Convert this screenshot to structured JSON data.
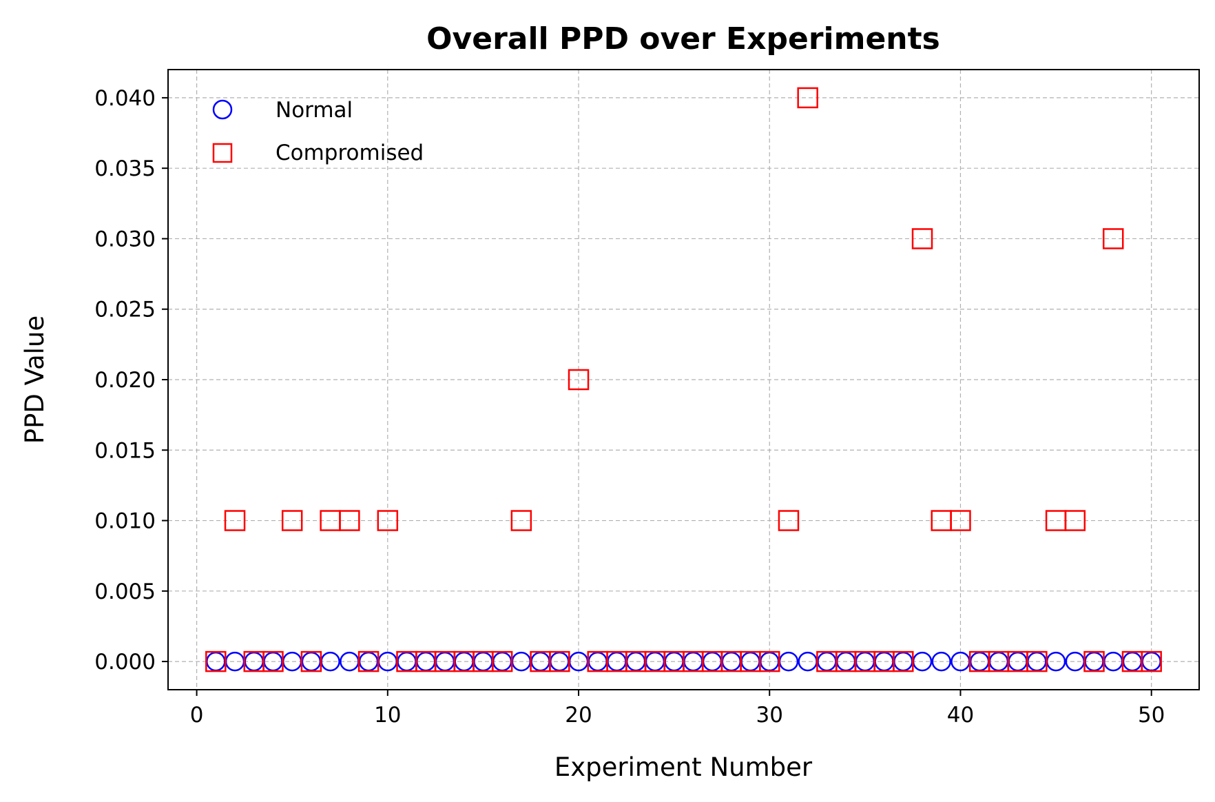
{
  "chart_data": {
    "type": "scatter",
    "title": "Overall PPD over Experiments",
    "xlabel": "Experiment Number",
    "ylabel": "PPD Value",
    "xlim": [
      -1.5,
      52.5
    ],
    "ylim": [
      -0.002,
      0.042
    ],
    "xticks": [
      0,
      10,
      20,
      30,
      40,
      50
    ],
    "xtick_labels": [
      "0",
      "10",
      "20",
      "30",
      "40",
      "50"
    ],
    "yticks": [
      0,
      0.005,
      0.01,
      0.015,
      0.02,
      0.025,
      0.03,
      0.035,
      0.04
    ],
    "ytick_labels": [
      "0.000",
      "0.005",
      "0.010",
      "0.015",
      "0.020",
      "0.025",
      "0.030",
      "0.035",
      "0.040"
    ],
    "grid": true,
    "legend_position": "top-left",
    "series": [
      {
        "name": "Normal",
        "marker": "circle",
        "color": "#0000ff",
        "x": [
          1,
          2,
          3,
          4,
          5,
          6,
          7,
          8,
          9,
          10,
          11,
          12,
          13,
          14,
          15,
          16,
          17,
          18,
          19,
          20,
          21,
          22,
          23,
          24,
          25,
          26,
          27,
          28,
          29,
          30,
          31,
          32,
          33,
          34,
          35,
          36,
          37,
          38,
          39,
          40,
          41,
          42,
          43,
          44,
          45,
          46,
          47,
          48,
          49,
          50
        ],
        "y": [
          0,
          0,
          0,
          0,
          0,
          0,
          0,
          0,
          0,
          0,
          0,
          0,
          0,
          0,
          0,
          0,
          0,
          0,
          0,
          0,
          0,
          0,
          0,
          0,
          0,
          0,
          0,
          0,
          0,
          0,
          0,
          0,
          0,
          0,
          0,
          0,
          0,
          0,
          0,
          0,
          0,
          0,
          0,
          0,
          0,
          0,
          0,
          0,
          0,
          0
        ]
      },
      {
        "name": "Compromised",
        "marker": "square",
        "color": "#ff0000",
        "x": [
          1,
          2,
          3,
          4,
          5,
          6,
          7,
          8,
          9,
          10,
          11,
          12,
          13,
          14,
          15,
          16,
          17,
          18,
          19,
          20,
          21,
          22,
          23,
          24,
          25,
          26,
          27,
          28,
          29,
          30,
          31,
          32,
          33,
          34,
          35,
          36,
          37,
          38,
          39,
          40,
          41,
          42,
          43,
          44,
          45,
          46,
          47,
          48,
          49,
          50
        ],
        "y": [
          0,
          0.01,
          0,
          0,
          0.01,
          0,
          0.01,
          0.01,
          0,
          0.01,
          0,
          0,
          0,
          0,
          0,
          0,
          0.01,
          0,
          0,
          0.02,
          0,
          0,
          0,
          0,
          0,
          0,
          0,
          0,
          0,
          0,
          0.01,
          0.04,
          0,
          0,
          0,
          0,
          0,
          0.03,
          0.01,
          0.01,
          0,
          0,
          0,
          0,
          0.01,
          0.01,
          0,
          0.03,
          0,
          0
        ]
      }
    ]
  }
}
